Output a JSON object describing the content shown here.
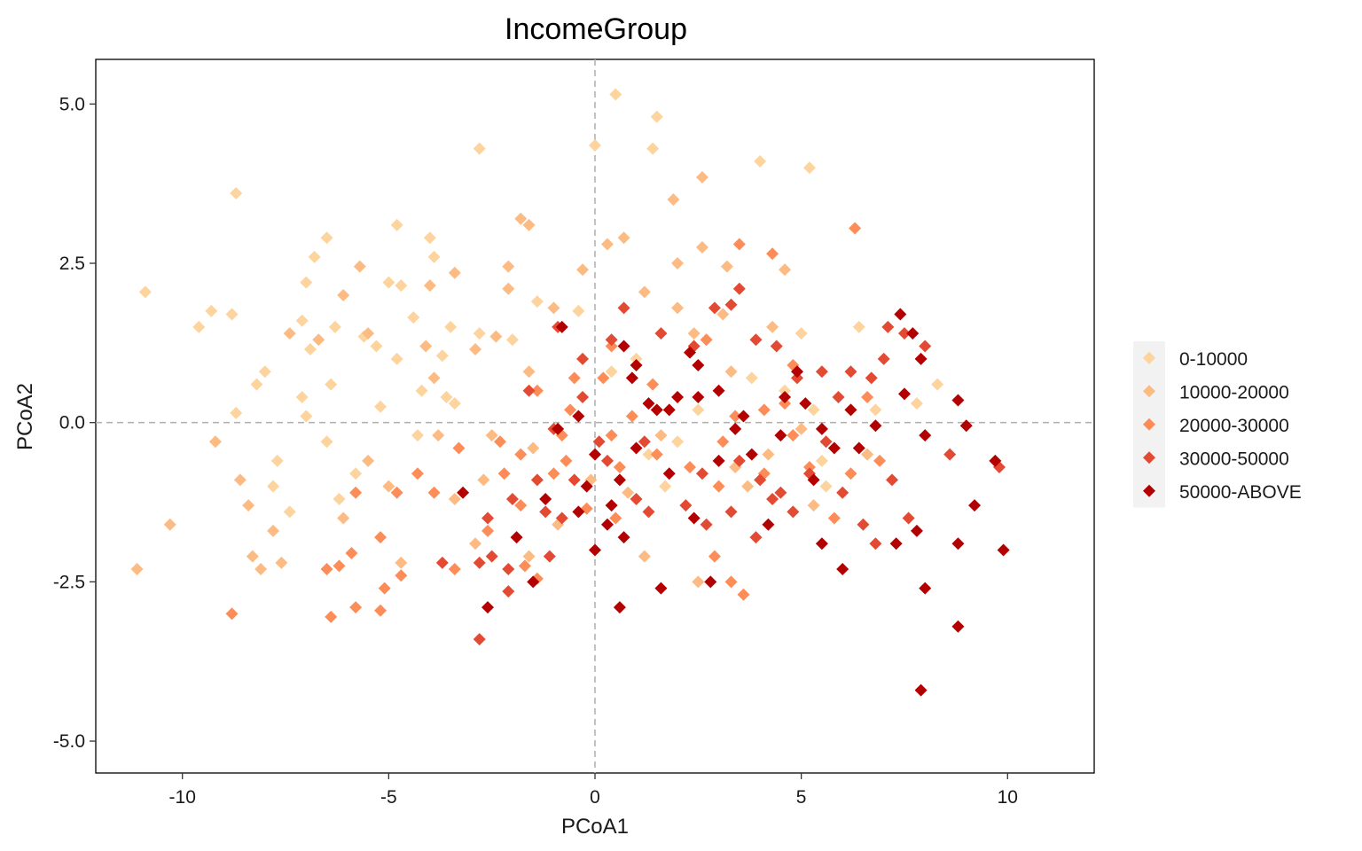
{
  "chart_data": {
    "type": "scatter",
    "title": "IncomeGroup",
    "xlabel": "PCoA1",
    "ylabel": "PCoA2",
    "xlim": [
      -12.1,
      12.1
    ],
    "ylim": [
      -5.5,
      5.7
    ],
    "x_ticks": [
      -10,
      -5,
      0,
      5,
      10
    ],
    "x_tick_labels": [
      "-10",
      "-5",
      "0",
      "5",
      "10"
    ],
    "y_ticks": [
      -5,
      -2.5,
      0,
      2.5,
      5
    ],
    "y_tick_labels": [
      "-5.0",
      "-2.5",
      "0.0",
      "2.5",
      "5.0"
    ],
    "grid": false,
    "reference_lines": {
      "x": 0,
      "y": 0,
      "style": "dashed"
    },
    "legend_position": "right",
    "marker": "diamond",
    "series": [
      {
        "name": "0-10000",
        "color": "#fdd49e",
        "points": [
          [
            0.5,
            5.15
          ],
          [
            1.5,
            4.8
          ],
          [
            0,
            4.35
          ],
          [
            1.4,
            4.3
          ],
          [
            4,
            4.1
          ],
          [
            5.2,
            4
          ],
          [
            -8.7,
            3.6
          ],
          [
            -2.8,
            4.3
          ],
          [
            -4.8,
            3.1
          ],
          [
            -6.5,
            2.9
          ],
          [
            -4,
            2.9
          ],
          [
            -6.8,
            2.6
          ],
          [
            -3.9,
            2.6
          ],
          [
            -10.9,
            2.05
          ],
          [
            -9.3,
            1.75
          ],
          [
            -9.6,
            1.5
          ],
          [
            -7,
            2.2
          ],
          [
            -5,
            2.2
          ],
          [
            -4.7,
            2.15
          ],
          [
            -8.8,
            1.7
          ],
          [
            -7.1,
            1.6
          ],
          [
            -6.3,
            1.5
          ],
          [
            -3.5,
            1.5
          ],
          [
            -4.4,
            1.65
          ],
          [
            -5.6,
            1.35
          ],
          [
            -2,
            1.3
          ],
          [
            -5.3,
            1.2
          ],
          [
            -6.9,
            1.15
          ],
          [
            -4.8,
            1
          ],
          [
            -3.7,
            1.05
          ],
          [
            -8,
            0.8
          ],
          [
            -6.4,
            0.6
          ],
          [
            -7.1,
            0.4
          ],
          [
            -4.2,
            0.5
          ],
          [
            -3.4,
            0.3
          ],
          [
            -8.2,
            0.6
          ],
          [
            -8.7,
            0.15
          ],
          [
            -5.2,
            0.25
          ],
          [
            -7,
            0.1
          ],
          [
            -6.5,
            -0.3
          ],
          [
            -4.3,
            -0.2
          ],
          [
            -7.7,
            -0.6
          ],
          [
            -6.2,
            -1.2
          ],
          [
            -7.8,
            -1
          ],
          [
            1.3,
            -0.5
          ],
          [
            2,
            -0.3
          ],
          [
            3.8,
            0.7
          ],
          [
            5,
            1.4
          ],
          [
            5.3,
            0.2
          ],
          [
            5.5,
            -0.6
          ],
          [
            6.4,
            1.5
          ],
          [
            6.8,
            0.2
          ],
          [
            7.8,
            0.3
          ],
          [
            8.3,
            0.6
          ],
          [
            0.4,
            0.8
          ],
          [
            1,
            1
          ],
          [
            -1.4,
            1.9
          ],
          [
            -0.4,
            1.75
          ],
          [
            -2.8,
            1.4
          ],
          [
            -3.6,
            0.4
          ],
          [
            -5.8,
            -0.8
          ],
          [
            -7.4,
            -1.4
          ],
          [
            4.6,
            0.5
          ],
          [
            5.6,
            -1
          ],
          [
            2.5,
            0.2
          ],
          [
            1.7,
            -1
          ]
        ]
      },
      {
        "name": "10000-20000",
        "color": "#fdbb84",
        "points": [
          [
            2.6,
            3.85
          ],
          [
            1.9,
            3.5
          ],
          [
            0.3,
            2.8
          ],
          [
            0.7,
            2.9
          ],
          [
            -1.8,
            3.2
          ],
          [
            -1.6,
            3.1
          ],
          [
            -5.7,
            2.45
          ],
          [
            -2.1,
            2.45
          ],
          [
            -2.1,
            2.1
          ],
          [
            -3.4,
            2.35
          ],
          [
            -4,
            2.15
          ],
          [
            -6.1,
            2
          ],
          [
            -5.5,
            1.4
          ],
          [
            -2.4,
            1.35
          ],
          [
            -1,
            1.8
          ],
          [
            -0.3,
            2.4
          ],
          [
            2.6,
            2.75
          ],
          [
            3.2,
            2.45
          ],
          [
            4.6,
            2.4
          ],
          [
            2,
            2.5
          ],
          [
            1.2,
            2.05
          ],
          [
            -6.7,
            1.3
          ],
          [
            -7.4,
            1.4
          ],
          [
            -4.1,
            1.2
          ],
          [
            -2.9,
            1.15
          ],
          [
            -1.6,
            0.8
          ],
          [
            -8.4,
            -1.3
          ],
          [
            -8.6,
            -0.9
          ],
          [
            -8.3,
            -2.1
          ],
          [
            -7.8,
            -1.7
          ],
          [
            -9.2,
            -0.3
          ],
          [
            -8.1,
            -2.3
          ],
          [
            -7.6,
            -2.2
          ],
          [
            -10.3,
            -1.6
          ],
          [
            -11.1,
            -2.3
          ],
          [
            -5.5,
            -0.6
          ],
          [
            -5,
            -1
          ],
          [
            -6.1,
            -1.5
          ],
          [
            -3.8,
            -0.2
          ],
          [
            -3.4,
            -1.2
          ],
          [
            -2.7,
            -0.9
          ],
          [
            -1.5,
            -0.4
          ],
          [
            -0.9,
            -1.6
          ],
          [
            -1.6,
            -2.1
          ],
          [
            -2.9,
            -1.9
          ],
          [
            -4.7,
            -2.2
          ],
          [
            -0.1,
            -0.9
          ],
          [
            0.8,
            -1.1
          ],
          [
            1.2,
            -2.1
          ],
          [
            2.5,
            -2.5
          ],
          [
            3.4,
            -0.7
          ],
          [
            3.7,
            -1
          ],
          [
            4.2,
            -0.5
          ],
          [
            5,
            -0.1
          ],
          [
            5.3,
            -1.3
          ],
          [
            6.6,
            -0.5
          ],
          [
            6.2,
            0.2
          ],
          [
            2,
            1.8
          ],
          [
            2.4,
            1.4
          ],
          [
            3.1,
            1.7
          ],
          [
            4.3,
            1.5
          ],
          [
            3.3,
            0.8
          ],
          [
            1.6,
            -0.2
          ],
          [
            -2.5,
            -0.2
          ],
          [
            -3.9,
            0.7
          ]
        ]
      },
      {
        "name": "20000-30000",
        "color": "#fc8d59",
        "points": [
          [
            6.3,
            3.05
          ],
          [
            4.3,
            2.65
          ],
          [
            3.5,
            2.8
          ],
          [
            -6.5,
            -2.3
          ],
          [
            -6.2,
            -2.25
          ],
          [
            -5.2,
            -1.8
          ],
          [
            -5.9,
            -2.05
          ],
          [
            -5.1,
            -2.6
          ],
          [
            -4.7,
            -2.4
          ],
          [
            -5.2,
            -2.95
          ],
          [
            -5.8,
            -2.9
          ],
          [
            -6.4,
            -3.05
          ],
          [
            -8.8,
            -3
          ],
          [
            -3.4,
            -2.3
          ],
          [
            -1.7,
            -2.25
          ],
          [
            -1.4,
            -2.45
          ],
          [
            -2.6,
            -1.7
          ],
          [
            -1.8,
            -1.3
          ],
          [
            -3.9,
            -1.1
          ],
          [
            -4.3,
            -0.8
          ],
          [
            -5.8,
            -1.1
          ],
          [
            -4.8,
            -1.1
          ],
          [
            -3.3,
            -0.4
          ],
          [
            -2.3,
            -0.3
          ],
          [
            -0.7,
            -0.6
          ],
          [
            0.4,
            -0.2
          ],
          [
            -1.8,
            -0.5
          ],
          [
            -1.4,
            0.5
          ],
          [
            -0.5,
            0.7
          ],
          [
            0.4,
            1.2
          ],
          [
            -0.2,
            -1.35
          ],
          [
            0.5,
            -1.5
          ],
          [
            2.9,
            -2.1
          ],
          [
            3.3,
            -2.5
          ],
          [
            3.6,
            -2.7
          ],
          [
            3.1,
            -0.3
          ],
          [
            3,
            -1
          ],
          [
            4.1,
            0.2
          ],
          [
            4.6,
            0.3
          ],
          [
            4.8,
            -0.2
          ],
          [
            5.2,
            -0.7
          ],
          [
            4.8,
            0.9
          ],
          [
            6.2,
            -0.8
          ],
          [
            6.6,
            0.4
          ],
          [
            6.9,
            -0.6
          ],
          [
            5.8,
            -1.5
          ],
          [
            4.1,
            -0.8
          ],
          [
            2.7,
            1.3
          ],
          [
            1.4,
            0.6
          ],
          [
            0.9,
            0.1
          ],
          [
            -0.6,
            0.2
          ],
          [
            -0.8,
            -0.2
          ],
          [
            -1,
            -0.8
          ],
          [
            -2.2,
            -0.8
          ],
          [
            1.5,
            -0.5
          ],
          [
            2.3,
            -0.7
          ],
          [
            3.4,
            0.1
          ],
          [
            0.2,
            0.7
          ],
          [
            0.6,
            -0.7
          ]
        ]
      },
      {
        "name": "30000-50000",
        "color": "#e34a33",
        "points": [
          [
            3.5,
            2.1
          ],
          [
            3.3,
            1.85
          ],
          [
            2.9,
            1.8
          ],
          [
            4.4,
            1.2
          ],
          [
            3.9,
            1.3
          ],
          [
            2.4,
            1.2
          ],
          [
            1.6,
            1.4
          ],
          [
            0.7,
            1.8
          ],
          [
            -0.9,
            1.5
          ],
          [
            -0.3,
            1
          ],
          [
            0.4,
            1.3
          ],
          [
            -2.8,
            -2.2
          ],
          [
            -2.5,
            -2.1
          ],
          [
            -2.1,
            -2.3
          ],
          [
            -1.1,
            -2.1
          ],
          [
            -2,
            -1.2
          ],
          [
            -3.7,
            -2.2
          ],
          [
            -2.8,
            -3.4
          ],
          [
            -2.1,
            -2.65
          ],
          [
            -2.6,
            -1.5
          ],
          [
            -1.2,
            -1.4
          ],
          [
            -0.5,
            -0.9
          ],
          [
            -1,
            -0.1
          ],
          [
            -1.4,
            -0.9
          ],
          [
            -0.8,
            -1.5
          ],
          [
            0.1,
            -0.3
          ],
          [
            0.3,
            -0.6
          ],
          [
            1,
            -1.2
          ],
          [
            1.3,
            -1.4
          ],
          [
            2.2,
            -1.3
          ],
          [
            2.6,
            -0.8
          ],
          [
            3.5,
            -0.6
          ],
          [
            4,
            -0.9
          ],
          [
            4.5,
            -1.1
          ],
          [
            4.8,
            -1.4
          ],
          [
            5.2,
            -0.8
          ],
          [
            5.6,
            -0.3
          ],
          [
            6,
            -1.1
          ],
          [
            6.5,
            -1.6
          ],
          [
            6.8,
            -1.9
          ],
          [
            7.2,
            -0.9
          ],
          [
            7.6,
            -1.5
          ],
          [
            8.6,
            -0.5
          ],
          [
            9.8,
            -0.7
          ],
          [
            7.1,
            1.5
          ],
          [
            7.5,
            1.4
          ],
          [
            8,
            1.2
          ],
          [
            7,
            1
          ],
          [
            6.7,
            0.7
          ],
          [
            6.2,
            0.8
          ],
          [
            5.9,
            0.4
          ],
          [
            5.5,
            0.8
          ],
          [
            4.9,
            0.7
          ],
          [
            1.2,
            -0.3
          ],
          [
            -0.3,
            0.4
          ],
          [
            -1.6,
            0.5
          ],
          [
            3.9,
            -1.8
          ],
          [
            4.3,
            -1.2
          ],
          [
            3.3,
            -1.4
          ],
          [
            2.7,
            -1.6
          ]
        ]
      },
      {
        "name": "50000-ABOVE",
        "color": "#b30000",
        "points": [
          [
            7.9,
            -4.2
          ],
          [
            8.8,
            -3.2
          ],
          [
            9.9,
            -2
          ],
          [
            8,
            -2.6
          ],
          [
            7.3,
            -1.9
          ],
          [
            7.8,
            -1.7
          ],
          [
            8.8,
            -1.9
          ],
          [
            9.2,
            -1.3
          ],
          [
            9.7,
            -0.6
          ],
          [
            9,
            -0.05
          ],
          [
            8,
            -0.2
          ],
          [
            8.8,
            0.35
          ],
          [
            7.5,
            0.45
          ],
          [
            7.4,
            1.7
          ],
          [
            7.7,
            1.4
          ],
          [
            7.9,
            1
          ],
          [
            6.8,
            -0.05
          ],
          [
            6.4,
            -0.4
          ],
          [
            6,
            -2.3
          ],
          [
            5.5,
            -1.9
          ],
          [
            5.3,
            -0.9
          ],
          [
            5.5,
            -0.1
          ],
          [
            4.9,
            0.8
          ],
          [
            5.1,
            0.3
          ],
          [
            4.6,
            0.4
          ],
          [
            4.2,
            -1.6
          ],
          [
            3.8,
            -0.5
          ],
          [
            3.4,
            -0.1
          ],
          [
            3,
            -0.6
          ],
          [
            2.8,
            -2.5
          ],
          [
            2.4,
            -1.5
          ],
          [
            1.8,
            -0.8
          ],
          [
            1.5,
            0.2
          ],
          [
            1.6,
            -2.6
          ],
          [
            1.3,
            0.3
          ],
          [
            0.9,
            0.7
          ],
          [
            0.6,
            -0.9
          ],
          [
            1,
            -0.4
          ],
          [
            0.4,
            -1.3
          ],
          [
            0.6,
            -2.9
          ],
          [
            0.7,
            -1.8
          ],
          [
            0,
            -2.0
          ],
          [
            0.3,
            -1.6
          ],
          [
            -0.4,
            -1.4
          ],
          [
            -0.2,
            -1
          ],
          [
            0,
            -0.5
          ],
          [
            -0.4,
            0.1
          ],
          [
            -0.9,
            -0.1
          ],
          [
            -1.2,
            -1.2
          ],
          [
            -1.5,
            -2.5
          ],
          [
            -1.9,
            -1.8
          ],
          [
            -2.6,
            -2.9
          ],
          [
            -3.2,
            -1.1
          ],
          [
            -0.8,
            1.5
          ],
          [
            0.7,
            1.2
          ],
          [
            1,
            0.9
          ],
          [
            2.3,
            1.1
          ],
          [
            2.5,
            0.9
          ],
          [
            3,
            0.5
          ],
          [
            3.6,
            0.1
          ],
          [
            4.5,
            -0.2
          ],
          [
            6.2,
            0.2
          ],
          [
            5.8,
            -0.4
          ],
          [
            2,
            0.4
          ],
          [
            2.5,
            0.4
          ],
          [
            1.8,
            0.2
          ]
        ]
      }
    ]
  }
}
